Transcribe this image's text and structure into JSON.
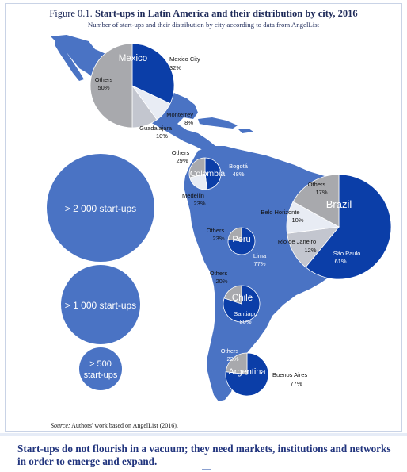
{
  "figure": {
    "number": "Figure 0.1.",
    "title": "Start-ups in Latin America and their distribution by city, 2016",
    "subtitle": "Number of start-ups and their distribution by city according to data from AngelList"
  },
  "legend": {
    "large": "> 2 000 start-ups",
    "medium": "> 1 000 start-ups",
    "small_line1": "> 500",
    "small_line2": "start-ups"
  },
  "countries": {
    "mexico": {
      "name": "Mexico",
      "slices": [
        {
          "city": "Mexico City",
          "share": "32%",
          "value": 32,
          "color": "#0b3ea8"
        },
        {
          "city": "Monterrey",
          "share": "8%",
          "value": 8,
          "color": "#e8ecf4"
        },
        {
          "city": "Guadalajara",
          "share": "10%",
          "value": 10,
          "color": "#c3c6cf"
        },
        {
          "city": "Others",
          "share": "50%",
          "value": 50,
          "color": "#a8a9ad"
        }
      ]
    },
    "colombia": {
      "name": "Colombia",
      "slices": [
        {
          "city": "Bogotá",
          "share": "48%",
          "value": 48,
          "color": "#0b3ea8"
        },
        {
          "city": "Medellin",
          "share": "23%",
          "value": 23,
          "color": "#e8ecf4"
        },
        {
          "city": "Others",
          "share": "29%",
          "value": 29,
          "color": "#a8a9ad"
        }
      ]
    },
    "peru": {
      "name": "Peru",
      "slices": [
        {
          "city": "Lima",
          "share": "77%",
          "value": 77,
          "color": "#0b3ea8"
        },
        {
          "city": "Others",
          "share": "23%",
          "value": 23,
          "color": "#a8a9ad"
        }
      ]
    },
    "brazil": {
      "name": "Brazil",
      "slices": [
        {
          "city": "São Paulo",
          "share": "61%",
          "value": 61,
          "color": "#0b3ea8"
        },
        {
          "city": "Rio de Janeiro",
          "share": "12%",
          "value": 12,
          "color": "#c3c6cf"
        },
        {
          "city": "Belo Horizonte",
          "share": "10%",
          "value": 10,
          "color": "#e8ecf4"
        },
        {
          "city": "Others",
          "share": "17%",
          "value": 17,
          "color": "#a8a9ad"
        }
      ]
    },
    "chile": {
      "name": "Chile",
      "slices": [
        {
          "city": "Santiago",
          "share": "80%",
          "value": 80,
          "color": "#0b3ea8"
        },
        {
          "city": "Others",
          "share": "20%",
          "value": 20,
          "color": "#a8a9ad"
        }
      ]
    },
    "argentina": {
      "name": "Argentina",
      "slices": [
        {
          "city": "Buenos Aires",
          "share": "77%",
          "value": 77,
          "color": "#0b3ea8"
        },
        {
          "city": "Others",
          "share": "23%",
          "value": 23,
          "color": "#a8a9ad"
        }
      ]
    }
  },
  "source": {
    "label": "Source:",
    "text": "Authors' work based on AngelList (2016)."
  },
  "footer": "Start-ups do not flourish in a vacuum; they need markets, institutions and networks in order to emerge and expand.",
  "colors": {
    "land": "#4a73c4",
    "primary": "#0b3ea8",
    "title": "#1f2b5a",
    "legend_circle": "#4a73c4"
  }
}
